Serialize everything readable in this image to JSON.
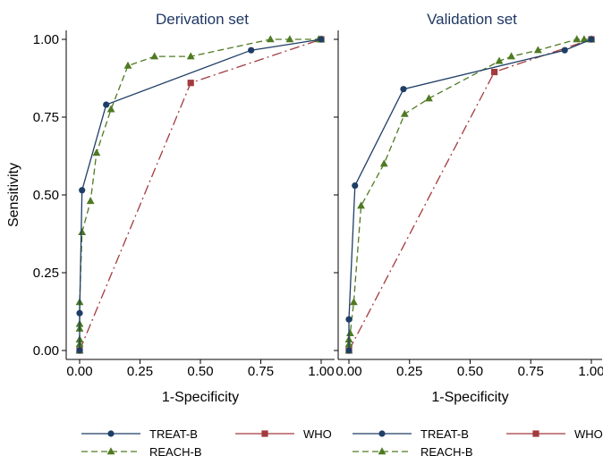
{
  "colors": {
    "treat": "#1f3e66",
    "reach": "#4f7a22",
    "who": "#a33a3e",
    "title": "#1f3864"
  },
  "chart_data": [
    {
      "type": "line",
      "title": "Derivation set",
      "xlabel": "1-Specificity",
      "ylabel": "Sensitivity",
      "xlim": [
        0,
        1
      ],
      "ylim": [
        0,
        1
      ],
      "xticks": [
        "0.00",
        "0.25",
        "0.50",
        "0.75",
        "1.00"
      ],
      "yticks": [
        "0.00",
        "0.25",
        "0.50",
        "0.75",
        "1.00"
      ],
      "grid": false,
      "series": [
        {
          "name": "TREAT-B",
          "marker": "circle",
          "line_style": "solid",
          "points": [
            [
              0,
              0
            ],
            [
              0,
              0.12
            ],
            [
              0.01,
              0.515
            ],
            [
              0.11,
              0.79
            ],
            [
              0.71,
              0.965
            ],
            [
              1,
              1
            ]
          ]
        },
        {
          "name": "REACH-B",
          "marker": "triangle",
          "line_style": "dashed",
          "points": [
            [
              0,
              0
            ],
            [
              0,
              0.02
            ],
            [
              0,
              0.035
            ],
            [
              0,
              0.07
            ],
            [
              0,
              0.085
            ],
            [
              0,
              0.155
            ],
            [
              0.01,
              0.38
            ],
            [
              0.045,
              0.48
            ],
            [
              0.07,
              0.635
            ],
            [
              0.13,
              0.775
            ],
            [
              0.2,
              0.915
            ],
            [
              0.31,
              0.945
            ],
            [
              0.46,
              0.945
            ],
            [
              0.79,
              1
            ],
            [
              0.87,
              1
            ],
            [
              0.99,
              1
            ],
            [
              1,
              1
            ]
          ]
        },
        {
          "name": "WHO",
          "marker": "square",
          "line_style": "dash-dot",
          "points": [
            [
              0,
              0
            ],
            [
              0.46,
              0.86
            ],
            [
              1,
              1
            ]
          ]
        }
      ]
    },
    {
      "type": "line",
      "title": "Validation set",
      "xlabel": "1-Specificity",
      "ylabel": "",
      "xlim": [
        0,
        1
      ],
      "ylim": [
        0,
        1
      ],
      "xticks": [
        "0.00",
        "0.25",
        "0.50",
        "0.75",
        "1.00"
      ],
      "yticks": [],
      "grid": false,
      "series": [
        {
          "name": "TREAT-B",
          "marker": "circle",
          "line_style": "solid",
          "points": [
            [
              0,
              0
            ],
            [
              0,
              0.1
            ],
            [
              0.025,
              0.53
            ],
            [
              0.225,
              0.84
            ],
            [
              0.89,
              0.965
            ],
            [
              1,
              1
            ]
          ]
        },
        {
          "name": "REACH-B",
          "marker": "triangle",
          "line_style": "dashed",
          "points": [
            [
              0,
              0
            ],
            [
              0,
              0.02
            ],
            [
              0,
              0.035
            ],
            [
              0.005,
              0.055
            ],
            [
              0.02,
              0.155
            ],
            [
              0.05,
              0.465
            ],
            [
              0.145,
              0.6
            ],
            [
              0.23,
              0.76
            ],
            [
              0.33,
              0.81
            ],
            [
              0.62,
              0.93
            ],
            [
              0.67,
              0.945
            ],
            [
              0.78,
              0.965
            ],
            [
              0.94,
              1
            ],
            [
              0.97,
              1
            ],
            [
              1,
              1
            ]
          ]
        },
        {
          "name": "WHO",
          "marker": "square",
          "line_style": "dash-dot",
          "points": [
            [
              0,
              0
            ],
            [
              0.6,
              0.895
            ],
            [
              1,
              1
            ]
          ]
        }
      ]
    }
  ],
  "legends": [
    {
      "items": [
        "TREAT-B",
        "WHO",
        "REACH-B"
      ]
    },
    {
      "items": [
        "TREAT-B",
        "WHO",
        "REACH-B"
      ]
    }
  ]
}
